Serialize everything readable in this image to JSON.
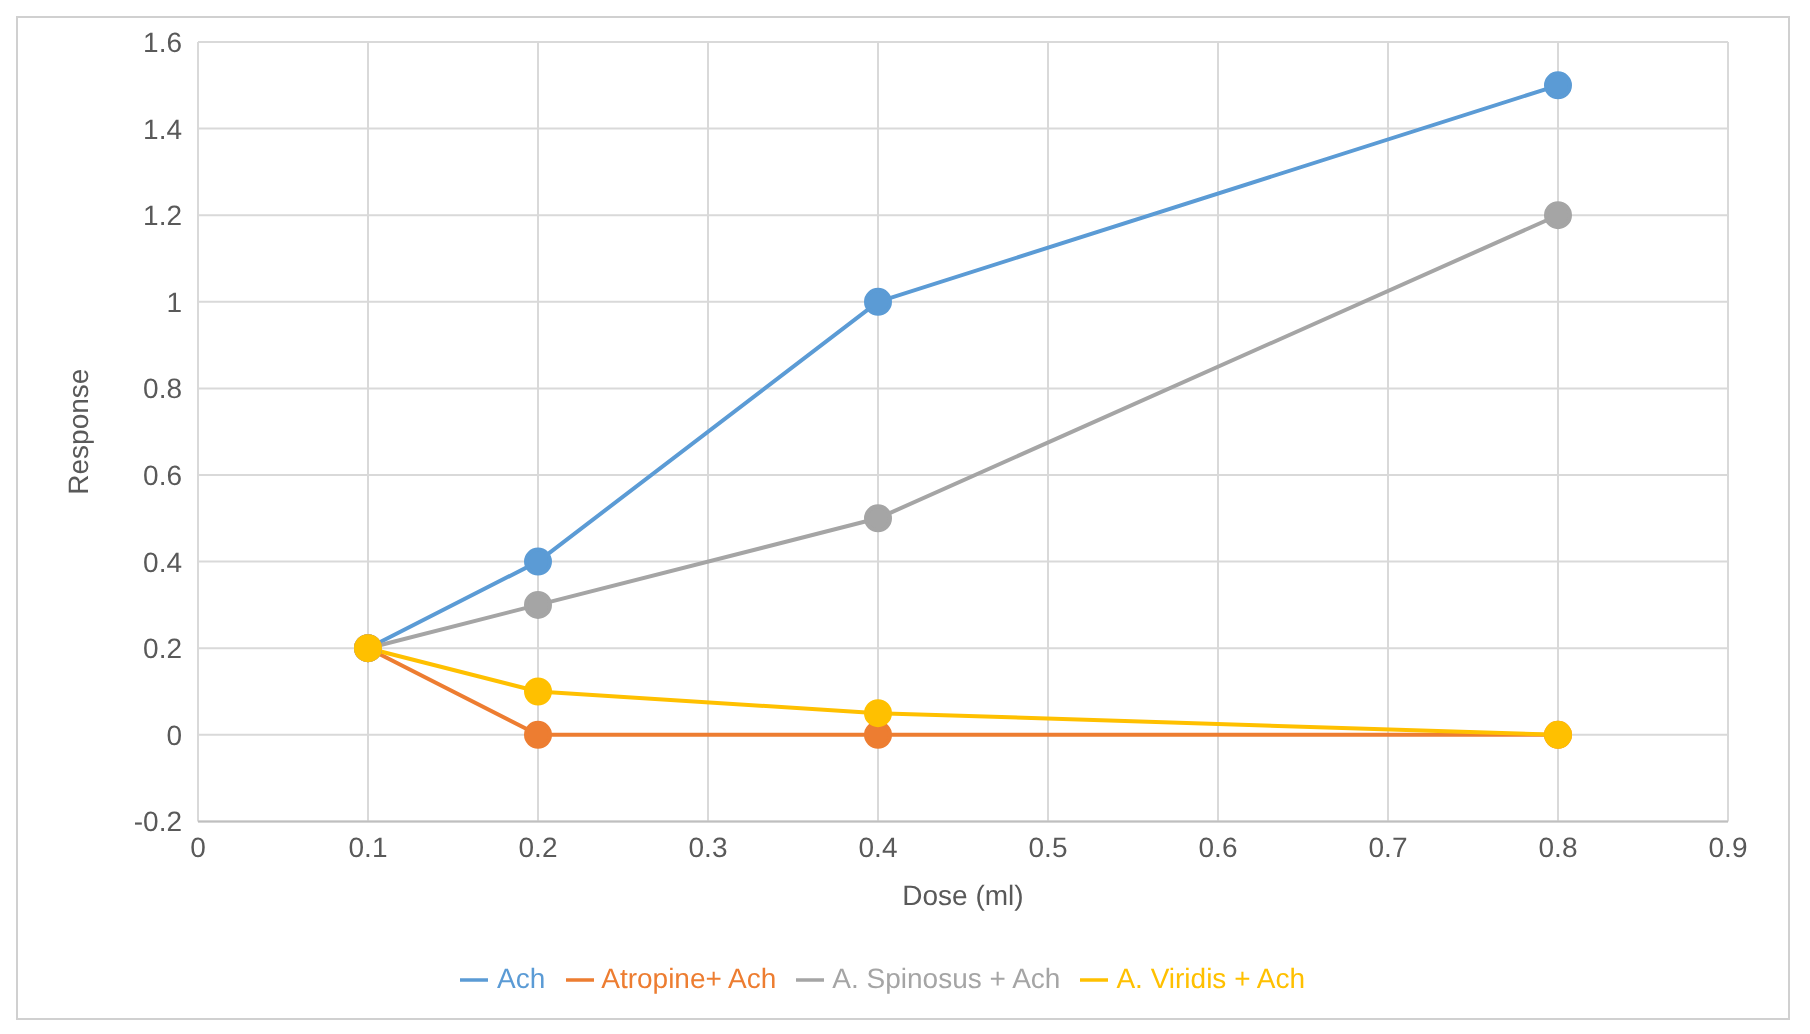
{
  "chart_data": {
    "type": "line",
    "xlabel": "Dose (ml)",
    "ylabel": "Response",
    "x": [
      0.1,
      0.2,
      0.4,
      0.8
    ],
    "series": [
      {
        "name": "Ach",
        "color": "#5b9bd5",
        "values": [
          0.2,
          0.4,
          1,
          1.5
        ]
      },
      {
        "name": "Atropine+ Ach",
        "color": "#ed7d31",
        "values": [
          0.2,
          0,
          0,
          0
        ]
      },
      {
        "name": "A. Spinosus + Ach",
        "color": "#a5a5a5",
        "values": [
          0.2,
          0.3,
          0.5,
          1.2
        ]
      },
      {
        "name": "A. Viridis + Ach",
        "color": "#ffc000",
        "values": [
          0.2,
          0.1,
          0.05,
          0
        ]
      }
    ],
    "xlim": [
      0,
      0.9
    ],
    "xticks": [
      0,
      0.1,
      0.2,
      0.3,
      0.4,
      0.5,
      0.6,
      0.7,
      0.8,
      0.9
    ],
    "ylim": [
      -0.2,
      1.6
    ],
    "yticks": [
      -0.2,
      0,
      0.2,
      0.4,
      0.6,
      0.8,
      1,
      1.2,
      1.4,
      1.6
    ],
    "grid": true,
    "legend": "bottom",
    "marker": "circle",
    "line_style": "solid"
  }
}
